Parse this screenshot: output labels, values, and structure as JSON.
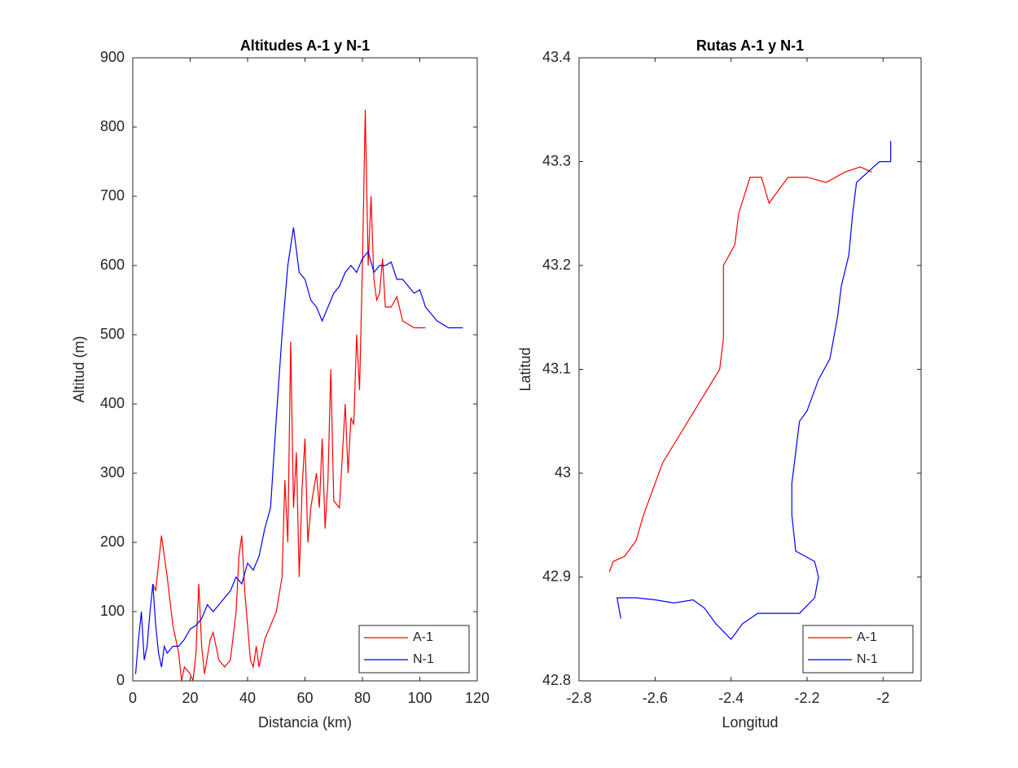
{
  "chart_data": [
    {
      "type": "line",
      "title": "Altitudes A-1 y N-1",
      "xlabel": "Distancia (km)",
      "ylabel": "Altitud (m)",
      "xlim": [
        0,
        120
      ],
      "ylim": [
        0,
        900
      ],
      "xticks": [
        0,
        20,
        40,
        60,
        80,
        100,
        120
      ],
      "yticks": [
        0,
        100,
        200,
        300,
        400,
        500,
        600,
        700,
        800,
        900
      ],
      "legend": "lower right",
      "series": [
        {
          "name": "A-1",
          "color": "#ff0000",
          "x": [
            7,
            8,
            10,
            12,
            14,
            16,
            17,
            18,
            20,
            21,
            22,
            23,
            24,
            25,
            27,
            28,
            30,
            32,
            34,
            36,
            37,
            38,
            39,
            40,
            41,
            42,
            43,
            44,
            46,
            48,
            50,
            52,
            53,
            54,
            55,
            56,
            57,
            58,
            59,
            60,
            61,
            62,
            64,
            65,
            66,
            67,
            68,
            69,
            70,
            72,
            74,
            75,
            76,
            77,
            78,
            79,
            80,
            81,
            82,
            83,
            84,
            85,
            86,
            87,
            88,
            90,
            92,
            94,
            96,
            98,
            100,
            102
          ],
          "values": [
            140,
            130,
            210,
            150,
            80,
            40,
            0,
            20,
            10,
            0,
            40,
            140,
            50,
            10,
            60,
            70,
            30,
            20,
            30,
            100,
            180,
            210,
            130,
            80,
            30,
            20,
            50,
            20,
            60,
            80,
            100,
            150,
            290,
            200,
            490,
            250,
            330,
            150,
            280,
            350,
            200,
            250,
            300,
            250,
            350,
            220,
            290,
            450,
            260,
            250,
            400,
            300,
            380,
            370,
            500,
            420,
            600,
            825,
            600,
            700,
            580,
            550,
            560,
            610,
            540,
            540,
            555,
            520,
            515,
            510,
            510,
            510
          ]
        },
        {
          "name": "N-1",
          "color": "#0000ff",
          "x": [
            1,
            2,
            3,
            4,
            5,
            6,
            7,
            8,
            9,
            10,
            11,
            12,
            14,
            16,
            18,
            20,
            22,
            24,
            26,
            28,
            30,
            32,
            34,
            36,
            38,
            40,
            42,
            44,
            46,
            48,
            50,
            52,
            54,
            56,
            58,
            60,
            62,
            64,
            66,
            68,
            70,
            72,
            74,
            76,
            78,
            80,
            82,
            84,
            86,
            88,
            90,
            92,
            94,
            96,
            98,
            100,
            102,
            104,
            106,
            108,
            110,
            112,
            114,
            115
          ],
          "values": [
            10,
            60,
            100,
            30,
            50,
            100,
            140,
            80,
            40,
            20,
            50,
            40,
            50,
            50,
            60,
            75,
            80,
            90,
            110,
            100,
            110,
            120,
            130,
            150,
            140,
            170,
            160,
            180,
            220,
            250,
            380,
            500,
            600,
            655,
            590,
            580,
            550,
            540,
            520,
            540,
            560,
            570,
            590,
            600,
            590,
            610,
            620,
            590,
            600,
            600,
            605,
            580,
            580,
            570,
            560,
            565,
            540,
            530,
            520,
            515,
            510,
            510,
            510,
            510
          ]
        }
      ]
    },
    {
      "type": "line",
      "title": "Rutas A-1 y N-1",
      "xlabel": "Longitud",
      "ylabel": "Latitud",
      "xlim": [
        -2.8,
        -1.9
      ],
      "ylim": [
        42.8,
        43.4
      ],
      "xticks": [
        -2.8,
        -2.6,
        -2.4,
        -2.2,
        -2
      ],
      "yticks": [
        42.8,
        42.9,
        43,
        43.1,
        43.2,
        43.3,
        43.4
      ],
      "legend": "lower right",
      "series": [
        {
          "name": "A-1",
          "color": "#ff0000",
          "x": [
            -2.72,
            -2.71,
            -2.68,
            -2.65,
            -2.63,
            -2.6,
            -2.58,
            -2.53,
            -2.48,
            -2.43,
            -2.42,
            -2.42,
            -2.42,
            -2.39,
            -2.38,
            -2.35,
            -2.32,
            -2.3,
            -2.27,
            -2.25,
            -2.2,
            -2.15,
            -2.1,
            -2.06,
            -2.03
          ],
          "values": [
            42.905,
            42.915,
            42.92,
            42.935,
            42.96,
            42.99,
            43.01,
            43.04,
            43.07,
            43.1,
            43.13,
            43.17,
            43.2,
            43.22,
            43.25,
            43.285,
            43.285,
            43.26,
            43.275,
            43.285,
            43.285,
            43.28,
            43.29,
            43.295,
            43.29
          ]
        },
        {
          "name": "N-1",
          "color": "#0000ff",
          "x": [
            -2.69,
            -2.7,
            -2.65,
            -2.6,
            -2.55,
            -2.5,
            -2.47,
            -2.44,
            -2.4,
            -2.37,
            -2.33,
            -2.28,
            -2.22,
            -2.18,
            -2.17,
            -2.18,
            -2.23,
            -2.24,
            -2.24,
            -2.23,
            -2.22,
            -2.2,
            -2.17,
            -2.14,
            -2.12,
            -2.11,
            -2.09,
            -2.08,
            -2.07,
            -2.04,
            -2.01,
            -1.98,
            -1.98
          ],
          "values": [
            42.86,
            42.88,
            42.88,
            42.878,
            42.875,
            42.878,
            42.87,
            42.855,
            42.84,
            42.855,
            42.865,
            42.865,
            42.865,
            42.88,
            42.9,
            42.915,
            42.925,
            42.96,
            42.99,
            43.02,
            43.05,
            43.06,
            43.09,
            43.11,
            43.15,
            43.18,
            43.21,
            43.25,
            43.28,
            43.29,
            43.3,
            43.3,
            43.32
          ]
        }
      ]
    }
  ]
}
